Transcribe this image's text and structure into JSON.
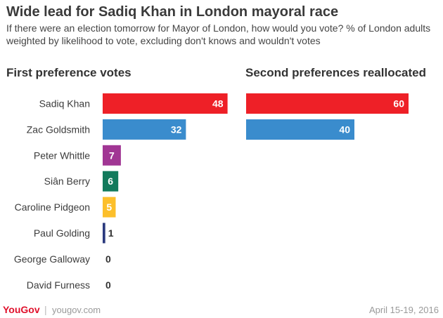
{
  "title": "Wide lead for Sadiq Khan in London mayoral race",
  "subtitle": "If there were an election tomorrow for Mayor of London, how would you vote? % of London adults weighted by likelihood to vote, excluding don't knows and wouldn't votes",
  "footer": {
    "logo": "YouGov",
    "separator": "|",
    "url": "yougov.com",
    "date": "April 15-19, 2016"
  },
  "chart_data": [
    {
      "type": "bar",
      "title": "First preference votes",
      "categories": [
        "Sadiq Khan",
        "Zac Goldsmith",
        "Peter Whittle",
        "Siân Berry",
        "Caroline Pidgeon",
        "Paul Golding",
        "George Galloway",
        "David Furness"
      ],
      "values": [
        48,
        32,
        7,
        6,
        5,
        1,
        0,
        0
      ],
      "colors": [
        "#ee2027",
        "#3a8ccd",
        "#a13694",
        "#127a5c",
        "#fcbf2b",
        "#2b3a7e",
        "#999999",
        "#999999"
      ],
      "orientation": "horizontal",
      "xlim": [
        0,
        50
      ],
      "grid": false
    },
    {
      "type": "bar",
      "title": "Second preferences reallocated",
      "categories": [
        "Sadiq Khan",
        "Zac Goldsmith"
      ],
      "values": [
        60,
        40
      ],
      "colors": [
        "#ee2027",
        "#3a8ccd"
      ],
      "orientation": "horizontal",
      "xlim": [
        0,
        60
      ],
      "grid": false
    }
  ]
}
